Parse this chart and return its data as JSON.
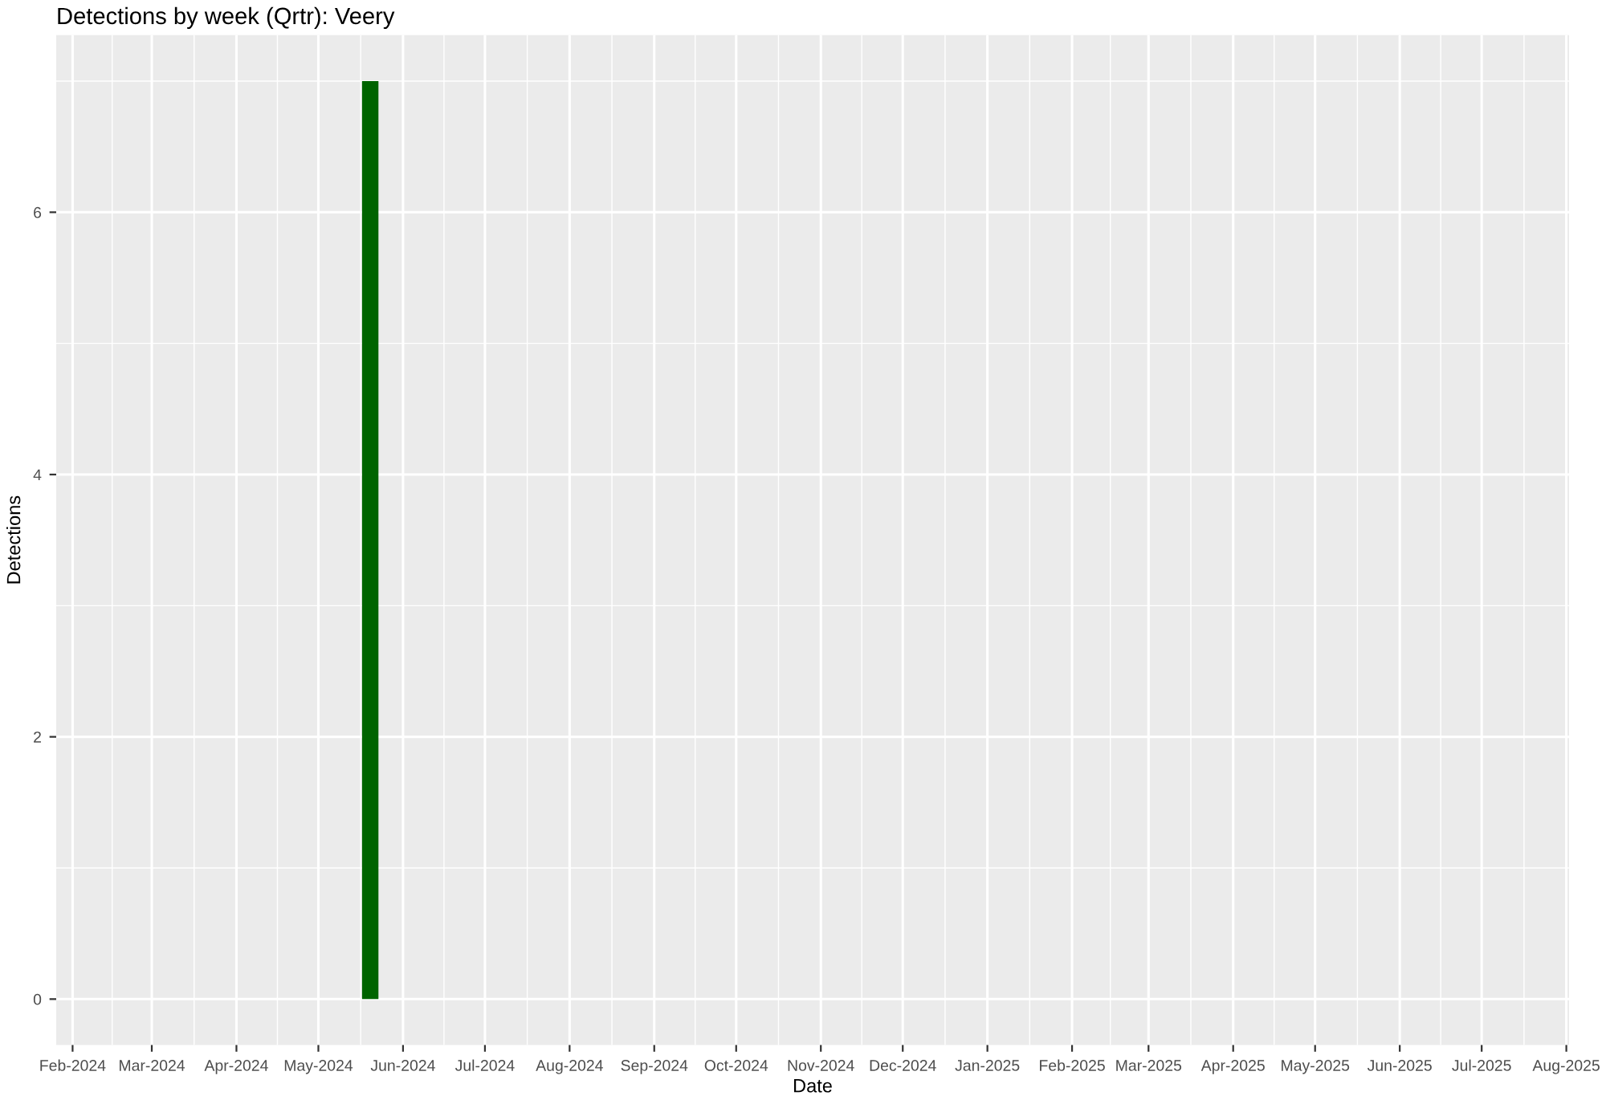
{
  "chart_data": {
    "type": "bar",
    "title": "Detections by week (Qrtr): Veery",
    "xlabel": "Date",
    "ylabel": "Detections",
    "x": [
      "2024-05-20"
    ],
    "series": [
      {
        "color": "#006400",
        "values": [
          7
        ]
      }
    ],
    "xlim": [
      "2024-01-26",
      "2025-08-02"
    ],
    "xticks": [
      {
        "value": "2024-02-01",
        "label": "Feb-2024"
      },
      {
        "value": "2024-03-01",
        "label": "Mar-2024"
      },
      {
        "value": "2024-04-01",
        "label": "Apr-2024"
      },
      {
        "value": "2024-05-01",
        "label": "May-2024"
      },
      {
        "value": "2024-06-01",
        "label": "Jun-2024"
      },
      {
        "value": "2024-07-01",
        "label": "Jul-2024"
      },
      {
        "value": "2024-08-01",
        "label": "Aug-2024"
      },
      {
        "value": "2024-09-01",
        "label": "Sep-2024"
      },
      {
        "value": "2024-10-01",
        "label": "Oct-2024"
      },
      {
        "value": "2024-11-01",
        "label": "Nov-2024"
      },
      {
        "value": "2024-12-01",
        "label": "Dec-2024"
      },
      {
        "value": "2025-01-01",
        "label": "Jan-2025"
      },
      {
        "value": "2025-02-01",
        "label": "Feb-2025"
      },
      {
        "value": "2025-03-01",
        "label": "Mar-2025"
      },
      {
        "value": "2025-04-01",
        "label": "Apr-2025"
      },
      {
        "value": "2025-05-01",
        "label": "May-2025"
      },
      {
        "value": "2025-06-01",
        "label": "Jun-2025"
      },
      {
        "value": "2025-07-01",
        "label": "Jul-2025"
      },
      {
        "value": "2025-08-01",
        "label": "Aug-2025"
      }
    ],
    "ylim": [
      -0.35,
      7.35
    ],
    "yticks": [
      0,
      2,
      4,
      6
    ],
    "grid": true
  }
}
